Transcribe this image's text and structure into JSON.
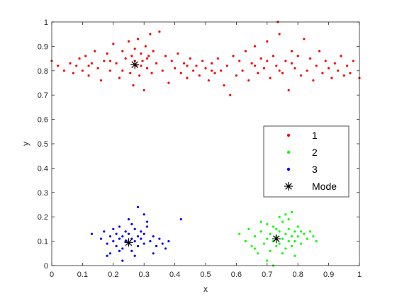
{
  "chart_data": {
    "type": "scatter",
    "title": "",
    "xlabel": "x",
    "ylabel": "y",
    "xlim": [
      0,
      1
    ],
    "ylim": [
      0,
      1
    ],
    "xticks": [
      0,
      0.1,
      0.2,
      0.3,
      0.4,
      0.5,
      0.6,
      0.7,
      0.8,
      0.9,
      1
    ],
    "xtick_labels": [
      "0",
      "0.1",
      "0.2",
      "0.3",
      "0.4",
      "0.5",
      "0.6",
      "0.7",
      "0.8",
      "0.9",
      "1"
    ],
    "yticks": [
      0,
      0.1,
      0.2,
      0.3,
      0.4,
      0.5,
      0.6,
      0.7,
      0.8,
      0.9,
      1
    ],
    "ytick_labels": [
      "0",
      "0.1",
      "0.2",
      "0.3",
      "0.4",
      "0.5",
      "0.6",
      "0.7",
      "0.8",
      "0.9",
      "1"
    ],
    "grid": false,
    "legend_position": "right",
    "series": [
      {
        "name": "1",
        "color": "#ff0000",
        "marker": "dot",
        "points": [
          [
            0.0,
            0.84
          ],
          [
            0.02,
            0.82
          ],
          [
            0.04,
            0.8
          ],
          [
            0.06,
            0.83
          ],
          [
            0.07,
            0.79
          ],
          [
            0.08,
            0.82
          ],
          [
            0.09,
            0.85
          ],
          [
            0.1,
            0.8
          ],
          [
            0.11,
            0.86
          ],
          [
            0.12,
            0.78
          ],
          [
            0.13,
            0.83
          ],
          [
            0.14,
            0.88
          ],
          [
            0.15,
            0.81
          ],
          [
            0.16,
            0.76
          ],
          [
            0.17,
            0.84
          ],
          [
            0.18,
            0.87
          ],
          [
            0.19,
            0.8
          ],
          [
            0.2,
            0.91
          ],
          [
            0.21,
            0.83
          ],
          [
            0.22,
            0.77
          ],
          [
            0.23,
            0.88
          ],
          [
            0.24,
            0.85
          ],
          [
            0.25,
            0.92
          ],
          [
            0.255,
            0.79
          ],
          [
            0.26,
            0.86
          ],
          [
            0.265,
            0.74
          ],
          [
            0.27,
            0.89
          ],
          [
            0.275,
            0.82
          ],
          [
            0.28,
            0.93
          ],
          [
            0.285,
            0.78
          ],
          [
            0.29,
            0.87
          ],
          [
            0.295,
            0.84
          ],
          [
            0.3,
            0.72
          ],
          [
            0.305,
            0.9
          ],
          [
            0.31,
            0.81
          ],
          [
            0.315,
            0.86
          ],
          [
            0.32,
            0.95
          ],
          [
            0.325,
            0.79
          ],
          [
            0.33,
            0.88
          ],
          [
            0.34,
            0.83
          ],
          [
            0.35,
            0.96
          ],
          [
            0.36,
            0.8
          ],
          [
            0.37,
            0.86
          ],
          [
            0.38,
            0.75
          ],
          [
            0.39,
            0.84
          ],
          [
            0.4,
            0.81
          ],
          [
            0.41,
            0.87
          ],
          [
            0.42,
            0.79
          ],
          [
            0.43,
            0.83
          ],
          [
            0.44,
            0.77
          ],
          [
            0.45,
            0.85
          ],
          [
            0.46,
            0.8
          ],
          [
            0.47,
            0.82
          ],
          [
            0.48,
            0.78
          ],
          [
            0.49,
            0.84
          ],
          [
            0.5,
            0.81
          ],
          [
            0.51,
            0.76
          ],
          [
            0.52,
            0.83
          ],
          [
            0.53,
            0.79
          ],
          [
            0.54,
            0.85
          ],
          [
            0.55,
            0.8
          ],
          [
            0.56,
            0.74
          ],
          [
            0.57,
            0.82
          ],
          [
            0.58,
            0.7
          ],
          [
            0.59,
            0.86
          ],
          [
            0.6,
            0.78
          ],
          [
            0.61,
            0.84
          ],
          [
            0.62,
            0.8
          ],
          [
            0.63,
            0.88
          ],
          [
            0.64,
            0.76
          ],
          [
            0.65,
            0.83
          ],
          [
            0.66,
            0.9
          ],
          [
            0.67,
            0.79
          ],
          [
            0.68,
            0.85
          ],
          [
            0.69,
            0.81
          ],
          [
            0.7,
            0.92
          ],
          [
            0.71,
            0.77
          ],
          [
            0.72,
            0.86
          ],
          [
            0.73,
            0.82
          ],
          [
            0.74,
            0.95
          ],
          [
            0.75,
            0.79
          ],
          [
            0.76,
            0.84
          ],
          [
            0.77,
            0.72
          ],
          [
            0.78,
            0.88
          ],
          [
            0.79,
            0.81
          ],
          [
            0.8,
            0.86
          ],
          [
            0.81,
            0.78
          ],
          [
            0.82,
            0.93
          ],
          [
            0.83,
            0.8
          ],
          [
            0.84,
            0.85
          ],
          [
            0.85,
            0.76
          ],
          [
            0.86,
            0.82
          ],
          [
            0.87,
            0.88
          ],
          [
            0.88,
            0.79
          ],
          [
            0.89,
            0.84
          ],
          [
            0.9,
            0.81
          ],
          [
            0.91,
            0.77
          ],
          [
            0.92,
            0.83
          ],
          [
            0.93,
            0.8
          ],
          [
            0.94,
            0.86
          ],
          [
            0.95,
            0.78
          ],
          [
            0.96,
            0.82
          ],
          [
            0.97,
            0.79
          ],
          [
            0.98,
            0.84
          ],
          [
            1.0,
            0.77
          ],
          [
            0.735,
            1.0
          ],
          [
            0.12,
            0.82
          ],
          [
            0.19,
            0.84
          ],
          [
            0.23,
            0.8
          ],
          [
            0.27,
            0.84
          ],
          [
            0.29,
            0.82
          ],
          [
            0.31,
            0.85
          ],
          [
            0.66,
            0.82
          ],
          [
            0.7,
            0.84
          ],
          [
            0.74,
            0.8
          ],
          [
            0.78,
            0.83
          ],
          [
            0.44,
            0.82
          ],
          [
            0.52,
            0.8
          ]
        ]
      },
      {
        "name": "2",
        "color": "#00ff00",
        "marker": "dot",
        "points": [
          [
            0.61,
            0.13
          ],
          [
            0.63,
            0.1
          ],
          [
            0.64,
            0.15
          ],
          [
            0.65,
            0.08
          ],
          [
            0.66,
            0.12
          ],
          [
            0.67,
            0.05
          ],
          [
            0.68,
            0.14
          ],
          [
            0.69,
            0.09
          ],
          [
            0.7,
            0.17
          ],
          [
            0.7,
            0.11
          ],
          [
            0.71,
            0.06
          ],
          [
            0.71,
            0.13
          ],
          [
            0.72,
            0.1
          ],
          [
            0.72,
            0.16
          ],
          [
            0.73,
            0.08
          ],
          [
            0.73,
            0.12
          ],
          [
            0.74,
            0.14
          ],
          [
            0.74,
            0.09
          ],
          [
            0.75,
            0.11
          ],
          [
            0.75,
            0.18
          ],
          [
            0.76,
            0.07
          ],
          [
            0.76,
            0.13
          ],
          [
            0.77,
            0.1
          ],
          [
            0.77,
            0.15
          ],
          [
            0.78,
            0.12
          ],
          [
            0.78,
            0.08
          ],
          [
            0.79,
            0.14
          ],
          [
            0.79,
            0.1
          ],
          [
            0.8,
            0.12
          ],
          [
            0.8,
            0.16
          ],
          [
            0.81,
            0.09
          ],
          [
            0.82,
            0.13
          ],
          [
            0.83,
            0.11
          ],
          [
            0.84,
            0.14
          ],
          [
            0.85,
            0.12
          ],
          [
            0.86,
            0.1
          ],
          [
            0.7,
            0.02
          ],
          [
            0.72,
            0.0
          ],
          [
            0.74,
            0.2
          ],
          [
            0.76,
            0.21
          ],
          [
            0.78,
            0.22
          ],
          [
            0.68,
            0.18
          ],
          [
            0.66,
            0.07
          ],
          [
            0.79,
            0.04
          ],
          [
            0.75,
            0.05
          ],
          [
            0.73,
            0.15
          ],
          [
            0.77,
            0.19
          ],
          [
            0.81,
            0.14
          ]
        ]
      },
      {
        "name": "3",
        "color": "#0000ff",
        "marker": "dot",
        "points": [
          [
            0.13,
            0.13
          ],
          [
            0.16,
            0.11
          ],
          [
            0.17,
            0.14
          ],
          [
            0.18,
            0.09
          ],
          [
            0.19,
            0.12
          ],
          [
            0.19,
            0.05
          ],
          [
            0.2,
            0.1
          ],
          [
            0.2,
            0.15
          ],
          [
            0.21,
            0.08
          ],
          [
            0.21,
            0.13
          ],
          [
            0.22,
            0.11
          ],
          [
            0.22,
            0.16
          ],
          [
            0.23,
            0.07
          ],
          [
            0.23,
            0.12
          ],
          [
            0.24,
            0.1
          ],
          [
            0.24,
            0.14
          ],
          [
            0.25,
            0.09
          ],
          [
            0.25,
            0.13
          ],
          [
            0.26,
            0.11
          ],
          [
            0.26,
            0.06
          ],
          [
            0.27,
            0.15
          ],
          [
            0.27,
            0.1
          ],
          [
            0.28,
            0.12
          ],
          [
            0.28,
            0.08
          ],
          [
            0.29,
            0.14
          ],
          [
            0.29,
            0.11
          ],
          [
            0.3,
            0.09
          ],
          [
            0.3,
            0.13
          ],
          [
            0.31,
            0.16
          ],
          [
            0.32,
            0.1
          ],
          [
            0.33,
            0.12
          ],
          [
            0.34,
            0.08
          ],
          [
            0.35,
            0.11
          ],
          [
            0.36,
            0.09
          ],
          [
            0.37,
            0.07
          ],
          [
            0.38,
            0.1
          ],
          [
            0.42,
            0.19
          ],
          [
            0.28,
            0.24
          ],
          [
            0.3,
            0.21
          ],
          [
            0.25,
            0.19
          ],
          [
            0.27,
            0.04
          ],
          [
            0.23,
            0.02
          ],
          [
            0.33,
            0.05
          ],
          [
            0.18,
            0.04
          ],
          [
            0.31,
            0.18
          ],
          [
            0.26,
            0.17
          ],
          [
            0.22,
            0.06
          ]
        ]
      },
      {
        "name": "Mode",
        "color": "#000000",
        "marker": "asterisk",
        "points": [
          [
            0.27,
            0.825
          ],
          [
            0.73,
            0.11
          ],
          [
            0.25,
            0.095
          ]
        ]
      }
    ]
  }
}
